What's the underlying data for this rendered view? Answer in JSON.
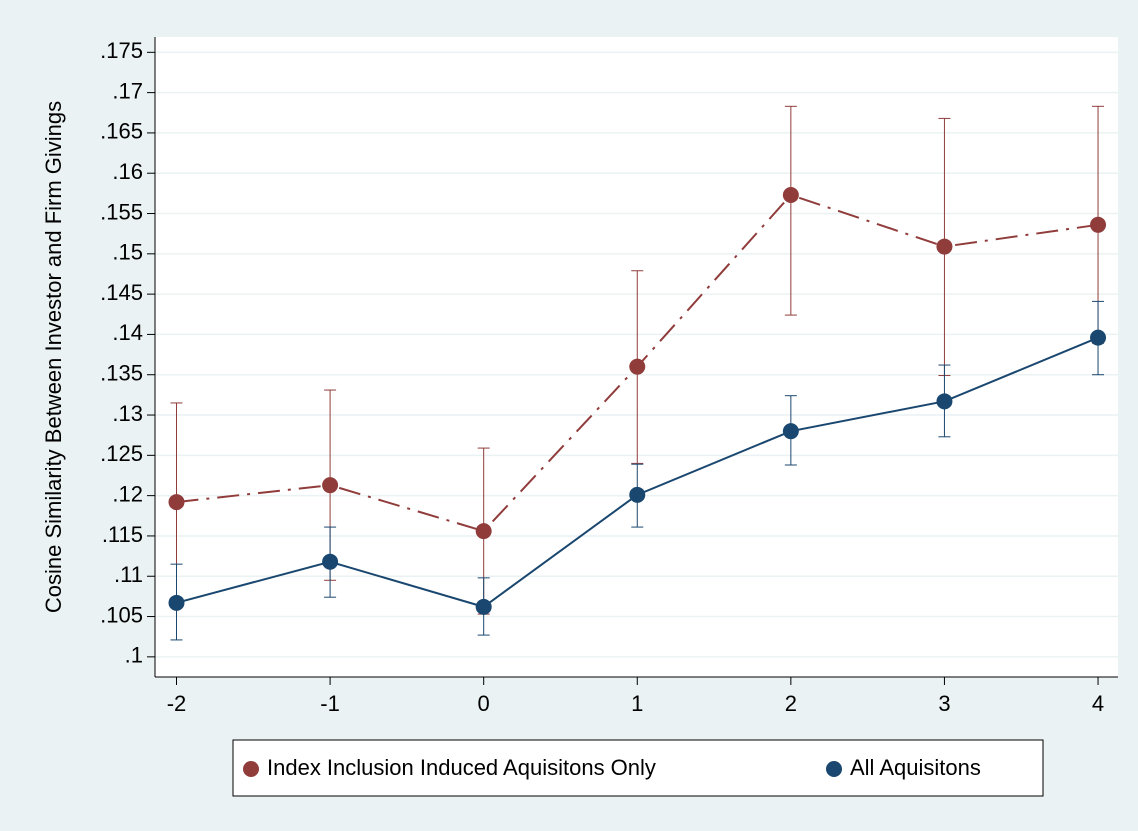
{
  "chart_data": {
    "type": "line",
    "y_label": "Cosine Similarity Between Investor and Firm Givings",
    "x": [
      -2,
      -1,
      0,
      1,
      2,
      3,
      4
    ],
    "series": [
      {
        "name": "Index Inclusion Induced Aquisitons Only",
        "color": "#903c3b",
        "dash": "dashdot",
        "values": [
          0.1192,
          0.1213,
          0.1156,
          0.136,
          0.1573,
          0.1509,
          0.1536
        ],
        "upper": [
          0.1315,
          0.1331,
          0.1259,
          0.1479,
          0.1683,
          0.1668,
          0.1683
        ],
        "lower": [
          0.1069,
          0.1095,
          0.1053,
          0.124,
          0.1424,
          0.1349,
          0.1389
        ]
      },
      {
        "name": "All Aquisitons",
        "color": "#1a476f",
        "dash": "solid",
        "values": [
          0.1067,
          0.1118,
          0.1062,
          0.1201,
          0.128,
          0.1317,
          0.1396
        ],
        "upper": [
          0.1115,
          0.1161,
          0.1098,
          0.1239,
          0.1324,
          0.1362,
          0.1441
        ],
        "lower": [
          0.1021,
          0.1074,
          0.1027,
          0.1161,
          0.1238,
          0.1273,
          0.135
        ]
      }
    ],
    "xlim": [
      -2.14,
      4.13
    ],
    "ylim": [
      0.0975,
      0.1769
    ],
    "xticks": [
      -2,
      -1,
      0,
      1,
      2,
      3,
      4
    ],
    "yticks": [
      {
        "value": 0.1,
        "label": ".1"
      },
      {
        "value": 0.105,
        "label": ".105"
      },
      {
        "value": 0.11,
        "label": ".11"
      },
      {
        "value": 0.115,
        "label": ".115"
      },
      {
        "value": 0.12,
        "label": ".12"
      },
      {
        "value": 0.125,
        "label": ".125"
      },
      {
        "value": 0.13,
        "label": ".13"
      },
      {
        "value": 0.135,
        "label": ".135"
      },
      {
        "value": 0.14,
        "label": ".14"
      },
      {
        "value": 0.145,
        "label": ".145"
      },
      {
        "value": 0.15,
        "label": ".15"
      },
      {
        "value": 0.155,
        "label": ".155"
      },
      {
        "value": 0.16,
        "label": ".16"
      },
      {
        "value": 0.165,
        "label": ".165"
      },
      {
        "value": 0.17,
        "label": ".17"
      },
      {
        "value": 0.175,
        "label": ".175"
      }
    ],
    "grid": true,
    "legend": "bottom"
  }
}
